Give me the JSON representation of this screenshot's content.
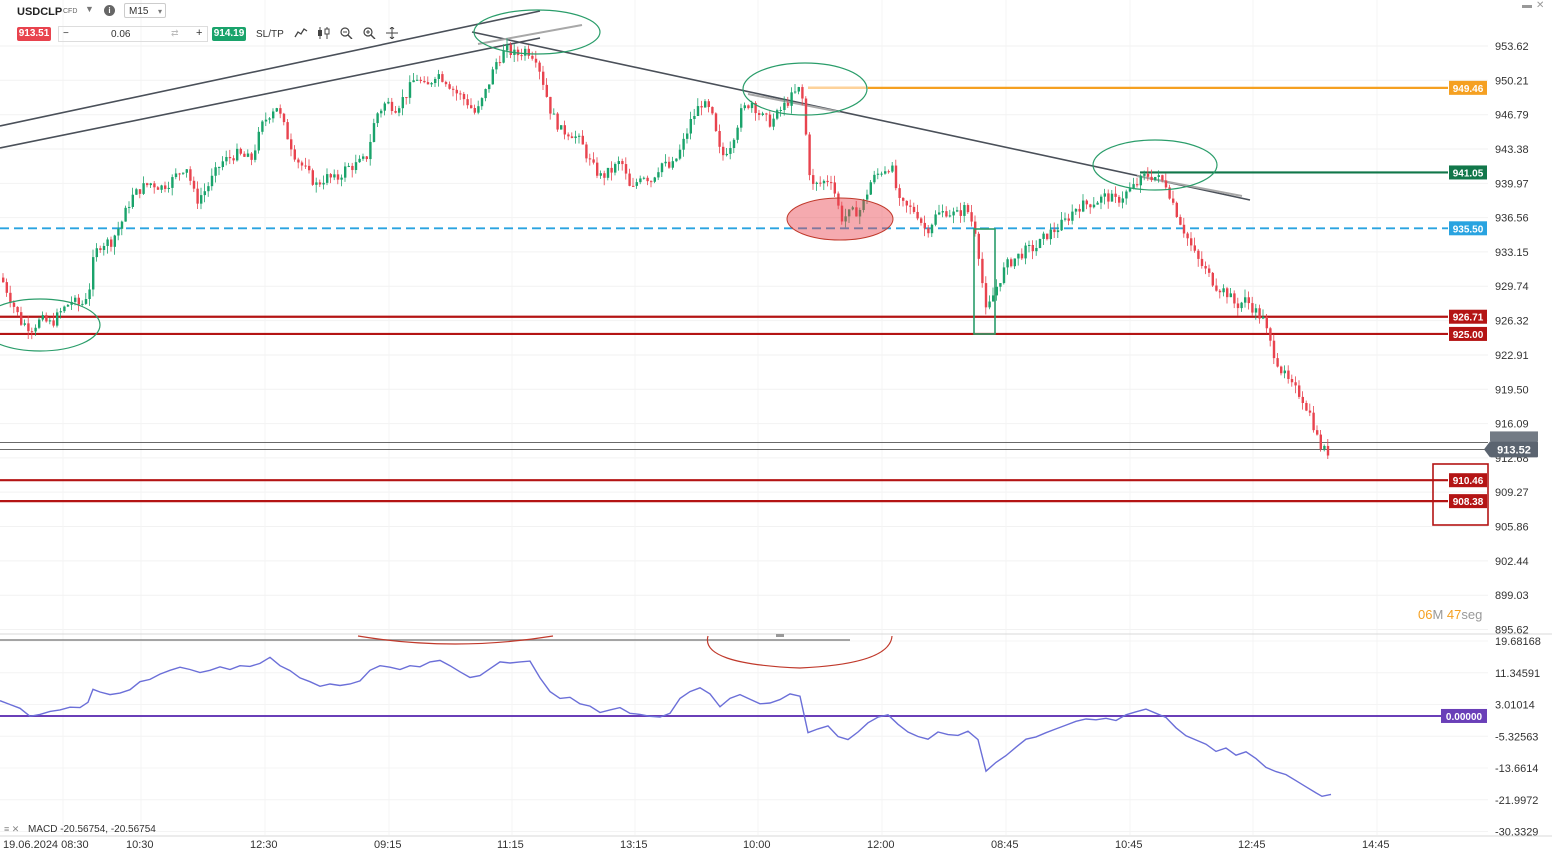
{
  "instrument": {
    "symbol": "USDCLP",
    "type": "CFD",
    "timeframe": "M15",
    "sell_price": "913.51",
    "buy_price": "914.19",
    "quantity": "0.06",
    "sltp_label": "SL/TP",
    "minus_label": "−",
    "plus_label": "+"
  },
  "toolbar_icons": [
    "line-chart-icon",
    "candles-icon",
    "zoom-out-icon",
    "zoom-in-icon",
    "move-icon"
  ],
  "countdown": {
    "minutes": "06",
    "m_label": "M",
    "seconds": "47",
    "s_label": "seg"
  },
  "macd_label": "MACD -20.56754, -20.56754",
  "colors": {
    "up": "#1aa36b",
    "down": "#e8434e",
    "support": "#b41414",
    "orange": "#f5a021",
    "green_level": "#11774a",
    "blue_dash": "#29a3e0",
    "trendline": "#4a5059",
    "macd_line": "#6b6fd8",
    "macd_zero": "#6a3fb8"
  },
  "chart_data": [
    {
      "type": "candlestick",
      "symbol": "USDCLP",
      "timeframe": "M15",
      "ylim": [
        894.2,
        955.1
      ],
      "y_ticks": [
        "953.62",
        "950.21",
        "946.79",
        "943.38",
        "939.97",
        "936.56",
        "933.15",
        "929.74",
        "926.32",
        "922.91",
        "919.50",
        "916.09",
        "912.68",
        "909.27",
        "905.86",
        "902.44",
        "899.03",
        "895.62"
      ],
      "x_ticks": [
        "19.06.2024 08:30",
        "10:30",
        "12:30",
        "09:15",
        "11:15",
        "13:15",
        "10:00",
        "12:00",
        "08:45",
        "10:45",
        "12:45",
        "14:45"
      ],
      "current_price": "913.52",
      "levels": [
        {
          "label": "949.46",
          "value": 949.46,
          "style": "solid",
          "color": "orange"
        },
        {
          "label": "941.05",
          "value": 941.05,
          "style": "solid",
          "color": "green"
        },
        {
          "label": "935.50",
          "value": 935.5,
          "style": "dashed",
          "color": "blue"
        },
        {
          "label": "926.71",
          "value": 926.71,
          "style": "solid",
          "color": "red"
        },
        {
          "label": "925.00",
          "value": 925.0,
          "style": "solid",
          "color": "red"
        },
        {
          "label": "910.46",
          "value": 910.46,
          "style": "solid",
          "color": "red"
        },
        {
          "label": "908.38",
          "value": 908.38,
          "style": "solid",
          "color": "red"
        }
      ],
      "price_path": [
        [
          0,
          930.6
        ],
        [
          10,
          928.4
        ],
        [
          20,
          926.2
        ],
        [
          30,
          925.6
        ],
        [
          40,
          926.4
        ],
        [
          50,
          926.0
        ],
        [
          60,
          927.2
        ],
        [
          70,
          928.3
        ],
        [
          80,
          927.8
        ],
        [
          88,
          929.4
        ],
        [
          93,
          932.8
        ],
        [
          100,
          934.0
        ],
        [
          110,
          934.2
        ],
        [
          120,
          936.0
        ],
        [
          130,
          938.5
        ],
        [
          140,
          939.5
        ],
        [
          150,
          940.0
        ],
        [
          160,
          939.6
        ],
        [
          170,
          940.2
        ],
        [
          185,
          941.8
        ],
        [
          195,
          938.2
        ],
        [
          205,
          939.4
        ],
        [
          220,
          942.0
        ],
        [
          235,
          942.9
        ],
        [
          250,
          942.3
        ],
        [
          262,
          946.0
        ],
        [
          275,
          947.8
        ],
        [
          285,
          945.0
        ],
        [
          295,
          942.5
        ],
        [
          305,
          941.2
        ],
        [
          315,
          939.8
        ],
        [
          325,
          940.6
        ],
        [
          335,
          940.3
        ],
        [
          345,
          941.5
        ],
        [
          355,
          941.8
        ],
        [
          365,
          942.4
        ],
        [
          375,
          946.8
        ],
        [
          385,
          948.0
        ],
        [
          395,
          947.5
        ],
        [
          405,
          948.8
        ],
        [
          415,
          950.6
        ],
        [
          425,
          949.3
        ],
        [
          435,
          951.0
        ],
        [
          445,
          950.2
        ],
        [
          455,
          949.0
        ],
        [
          465,
          948.2
        ],
        [
          475,
          946.8
        ],
        [
          485,
          949.2
        ],
        [
          495,
          952.0
        ],
        [
          505,
          953.3
        ],
        [
          515,
          952.7
        ],
        [
          525,
          953.3
        ],
        [
          535,
          952.5
        ],
        [
          540,
          950.8
        ],
        [
          550,
          947.0
        ],
        [
          560,
          945.2
        ],
        [
          570,
          945.0
        ],
        [
          580,
          944.0
        ],
        [
          590,
          941.8
        ],
        [
          600,
          940.6
        ],
        [
          610,
          941.2
        ],
        [
          620,
          942.2
        ],
        [
          630,
          939.0
        ],
        [
          640,
          941.0
        ],
        [
          650,
          940.3
        ],
        [
          660,
          942.0
        ],
        [
          670,
          941.4
        ],
        [
          680,
          943.4
        ],
        [
          690,
          946.2
        ],
        [
          700,
          948.0
        ],
        [
          710,
          947.0
        ],
        [
          720,
          942.5
        ],
        [
          730,
          944.0
        ],
        [
          740,
          947.0
        ],
        [
          750,
          948.2
        ],
        [
          760,
          946.6
        ],
        [
          770,
          946.0
        ],
        [
          780,
          947.3
        ],
        [
          790,
          948.5
        ],
        [
          800,
          949.5
        ],
        [
          810,
          939.6
        ],
        [
          820,
          940.0
        ],
        [
          830,
          940.5
        ],
        [
          840,
          936.5
        ],
        [
          850,
          937.0
        ],
        [
          860,
          937.4
        ],
        [
          870,
          940.2
        ],
        [
          880,
          941.2
        ],
        [
          890,
          941.8
        ],
        [
          898,
          938.0
        ],
        [
          905,
          937.6
        ],
        [
          915,
          937.2
        ],
        [
          925,
          935.2
        ],
        [
          935,
          936.8
        ],
        [
          945,
          937.2
        ],
        [
          955,
          936.8
        ],
        [
          965,
          937.6
        ],
        [
          975,
          935.1
        ],
        [
          985,
          927.0
        ],
        [
          995,
          929.6
        ],
        [
          1005,
          931.8
        ],
        [
          1015,
          932.6
        ],
        [
          1025,
          933.3
        ],
        [
          1035,
          933.6
        ],
        [
          1045,
          934.8
        ],
        [
          1055,
          935.4
        ],
        [
          1065,
          936.3
        ],
        [
          1075,
          937.6
        ],
        [
          1085,
          937.9
        ],
        [
          1095,
          938.2
        ],
        [
          1105,
          938.7
        ],
        [
          1115,
          938.2
        ],
        [
          1125,
          939.0
        ],
        [
          1135,
          939.8
        ],
        [
          1145,
          940.8
        ],
        [
          1155,
          940.6
        ],
        [
          1165,
          939.9
        ],
        [
          1175,
          937.2
        ],
        [
          1185,
          934.8
        ],
        [
          1195,
          932.6
        ],
        [
          1205,
          931.2
        ],
        [
          1215,
          929.8
        ],
        [
          1225,
          929.2
        ],
        [
          1235,
          927.8
        ],
        [
          1245,
          928.4
        ],
        [
          1255,
          927.2
        ],
        [
          1262,
          926.4
        ],
        [
          1270,
          923.8
        ],
        [
          1280,
          921.4
        ],
        [
          1290,
          919.8
        ],
        [
          1300,
          918.9
        ],
        [
          1310,
          916.8
        ],
        [
          1318,
          914.0
        ],
        [
          1325,
          913.2
        ],
        [
          1331,
          913.52
        ]
      ],
      "annotations": [
        "ellipse",
        "ellipse",
        "ellipse",
        "ellipse",
        "filled-ellipse",
        "rectangle",
        "rectangle"
      ]
    },
    {
      "type": "line",
      "name": "MACD",
      "ylim": [
        -31.0,
        20.3
      ],
      "y_ticks": [
        "19.68168",
        "11.34591",
        "3.01014",
        "-5.32563",
        "-13.6614",
        "-21.9972",
        "-30.3329"
      ],
      "zero_line": {
        "label": "0.00000",
        "value": 0.0
      },
      "values": [
        [
          0,
          4.0
        ],
        [
          10,
          3.0
        ],
        [
          20,
          2.0
        ],
        [
          30,
          -0.1
        ],
        [
          40,
          0.4
        ],
        [
          50,
          1.2
        ],
        [
          60,
          1.6
        ],
        [
          70,
          2.3
        ],
        [
          80,
          2.2
        ],
        [
          88,
          3.6
        ],
        [
          93,
          7.0
        ],
        [
          100,
          6.3
        ],
        [
          110,
          5.6
        ],
        [
          120,
          6.0
        ],
        [
          130,
          6.9
        ],
        [
          140,
          9.0
        ],
        [
          150,
          9.6
        ],
        [
          160,
          11.0
        ],
        [
          170,
          12.0
        ],
        [
          180,
          12.8
        ],
        [
          190,
          12.2
        ],
        [
          200,
          11.4
        ],
        [
          210,
          12.0
        ],
        [
          220,
          12.9
        ],
        [
          230,
          12.2
        ],
        [
          240,
          13.2
        ],
        [
          250,
          13.0
        ],
        [
          260,
          13.8
        ],
        [
          270,
          15.4
        ],
        [
          280,
          13.2
        ],
        [
          290,
          11.9
        ],
        [
          300,
          10.0
        ],
        [
          310,
          9.0
        ],
        [
          320,
          7.8
        ],
        [
          330,
          8.4
        ],
        [
          340,
          8.0
        ],
        [
          350,
          8.4
        ],
        [
          360,
          9.2
        ],
        [
          370,
          12.0
        ],
        [
          380,
          13.2
        ],
        [
          390,
          12.8
        ],
        [
          400,
          12.2
        ],
        [
          410,
          13.2
        ],
        [
          420,
          12.9
        ],
        [
          430,
          14.2
        ],
        [
          440,
          14.6
        ],
        [
          450,
          13.2
        ],
        [
          460,
          11.6
        ],
        [
          470,
          10.1
        ],
        [
          480,
          10.6
        ],
        [
          490,
          12.4
        ],
        [
          500,
          14.2
        ],
        [
          510,
          13.9
        ],
        [
          520,
          14.2
        ],
        [
          530,
          14.4
        ],
        [
          540,
          10.0
        ],
        [
          550,
          6.4
        ],
        [
          560,
          4.6
        ],
        [
          570,
          4.9
        ],
        [
          580,
          3.2
        ],
        [
          590,
          2.6
        ],
        [
          600,
          0.9
        ],
        [
          610,
          1.6
        ],
        [
          620,
          2.2
        ],
        [
          630,
          0.7
        ],
        [
          640,
          0.4
        ],
        [
          650,
          -0.1
        ],
        [
          660,
          -0.3
        ],
        [
          670,
          0.7
        ],
        [
          680,
          4.6
        ],
        [
          690,
          6.4
        ],
        [
          700,
          7.4
        ],
        [
          710,
          5.8
        ],
        [
          720,
          2.4
        ],
        [
          730,
          4.6
        ],
        [
          740,
          5.6
        ],
        [
          750,
          4.4
        ],
        [
          760,
          3.2
        ],
        [
          770,
          3.4
        ],
        [
          780,
          4.3
        ],
        [
          790,
          5.8
        ],
        [
          800,
          5.2
        ],
        [
          808,
          -4.4
        ],
        [
          818,
          -3.4
        ],
        [
          828,
          -2.6
        ],
        [
          838,
          -5.4
        ],
        [
          848,
          -6.2
        ],
        [
          858,
          -4.2
        ],
        [
          868,
          -1.8
        ],
        [
          878,
          -0.3
        ],
        [
          888,
          0.3
        ],
        [
          898,
          -2.2
        ],
        [
          908,
          -4.2
        ],
        [
          918,
          -5.4
        ],
        [
          928,
          -6.1
        ],
        [
          938,
          -4.2
        ],
        [
          948,
          -4.9
        ],
        [
          958,
          -5.1
        ],
        [
          968,
          -4.0
        ],
        [
          978,
          -6.2
        ],
        [
          986,
          -14.5
        ],
        [
          996,
          -12.2
        ],
        [
          1006,
          -10.4
        ],
        [
          1016,
          -8.2
        ],
        [
          1026,
          -6.1
        ],
        [
          1036,
          -5.5
        ],
        [
          1046,
          -4.4
        ],
        [
          1056,
          -3.4
        ],
        [
          1066,
          -2.4
        ],
        [
          1076,
          -1.4
        ],
        [
          1086,
          -0.8
        ],
        [
          1096,
          -1.0
        ],
        [
          1106,
          -0.6
        ],
        [
          1116,
          -1.2
        ],
        [
          1126,
          0.3
        ],
        [
          1136,
          1.1
        ],
        [
          1146,
          1.8
        ],
        [
          1156,
          0.7
        ],
        [
          1166,
          -0.4
        ],
        [
          1176,
          -3.1
        ],
        [
          1186,
          -5.2
        ],
        [
          1196,
          -6.3
        ],
        [
          1206,
          -7.4
        ],
        [
          1216,
          -9.3
        ],
        [
          1226,
          -8.4
        ],
        [
          1236,
          -10.3
        ],
        [
          1246,
          -9.4
        ],
        [
          1256,
          -11.2
        ],
        [
          1266,
          -13.5
        ],
        [
          1276,
          -14.6
        ],
        [
          1286,
          -15.4
        ],
        [
          1296,
          -17.0
        ],
        [
          1306,
          -18.6
        ],
        [
          1316,
          -20.2
        ],
        [
          1322,
          -21.1
        ],
        [
          1331,
          -20.6
        ]
      ]
    }
  ]
}
